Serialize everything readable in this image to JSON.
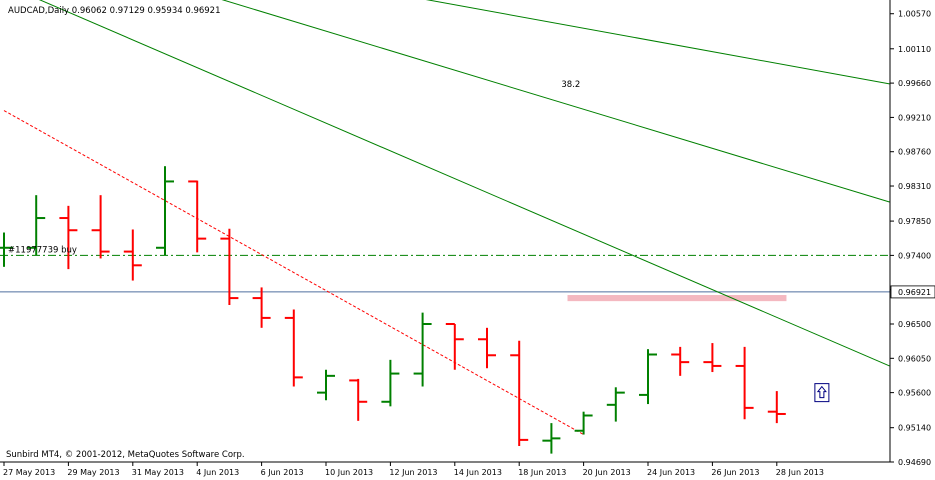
{
  "header": {
    "symbol_line": "AUDCAD,Daily  0.96062 0.97129 0.95934 0.96921"
  },
  "footer": {
    "copyright": "Sunbird MT4, © 2001-2012, MetaQuotes Software Corp."
  },
  "colors": {
    "up_bar": "#008000",
    "down_bar": "#ff0000",
    "trend_line": "#008000",
    "support_line": "#ff0000",
    "order_line": "#008000",
    "bid_line": "#4f6f9f",
    "zone": "#f4b8c0",
    "axis": "#000000"
  },
  "chart_data": {
    "type": "ohlc",
    "symbol": "AUDCAD",
    "timeframe": "Daily",
    "last": {
      "open": 0.96062,
      "high": 0.97129,
      "low": 0.95934,
      "close": 0.96921
    },
    "ylim": [
      0.9469,
      1.0075
    ],
    "y_ticks": [
      "1.00570",
      "1.00110",
      "0.99660",
      "0.99210",
      "0.98760",
      "0.98310",
      "0.97850",
      "0.97400",
      "0.96950",
      "0.96500",
      "0.96050",
      "0.95600",
      "0.95140",
      "0.94690"
    ],
    "x_ticks": [
      {
        "label": "27 May 2013",
        "bar": 0
      },
      {
        "label": "29 May 2013",
        "bar": 2
      },
      {
        "label": "31 May 2013",
        "bar": 4
      },
      {
        "label": "4 Jun 2013",
        "bar": 6
      },
      {
        "label": "6 Jun 2013",
        "bar": 8
      },
      {
        "label": "10 Jun 2013",
        "bar": 10
      },
      {
        "label": "12 Jun 2013",
        "bar": 12
      },
      {
        "label": "14 Jun 2013",
        "bar": 14
      },
      {
        "label": "18 Jun 2013",
        "bar": 16
      },
      {
        "label": "20 Jun 2013",
        "bar": 18
      },
      {
        "label": "24 Jun 2013",
        "bar": 20
      },
      {
        "label": "26 Jun 2013",
        "bar": 22
      },
      {
        "label": "28 Jun 2013",
        "bar": 24
      }
    ],
    "bars": [
      {
        "o": 0.975,
        "h": 0.977,
        "l": 0.9725,
        "c": 0.975
      },
      {
        "o": 0.975,
        "h": 0.9819,
        "l": 0.974,
        "c": 0.9789
      },
      {
        "o": 0.9789,
        "h": 0.9805,
        "l": 0.9722,
        "c": 0.9773
      },
      {
        "o": 0.9773,
        "h": 0.9819,
        "l": 0.9736,
        "c": 0.9745
      },
      {
        "o": 0.9745,
        "h": 0.9774,
        "l": 0.9707,
        "c": 0.9727
      },
      {
        "o": 0.975,
        "h": 0.9857,
        "l": 0.974,
        "c": 0.9837
      },
      {
        "o": 0.9837,
        "h": 0.9838,
        "l": 0.9744,
        "c": 0.9762
      },
      {
        "o": 0.9762,
        "h": 0.9775,
        "l": 0.9675,
        "c": 0.9684
      },
      {
        "o": 0.9684,
        "h": 0.9698,
        "l": 0.9645,
        "c": 0.9658
      },
      {
        "o": 0.9658,
        "h": 0.9669,
        "l": 0.9568,
        "c": 0.958
      },
      {
        "o": 0.956,
        "h": 0.959,
        "l": 0.955,
        "c": 0.9582
      },
      {
        "o": 0.9576,
        "h": 0.9578,
        "l": 0.9523,
        "c": 0.9548
      },
      {
        "o": 0.9548,
        "h": 0.9603,
        "l": 0.9542,
        "c": 0.9585
      },
      {
        "o": 0.9585,
        "h": 0.9665,
        "l": 0.9568,
        "c": 0.965
      },
      {
        "o": 0.965,
        "h": 0.965,
        "l": 0.959,
        "c": 0.963
      },
      {
        "o": 0.963,
        "h": 0.9645,
        "l": 0.9592,
        "c": 0.9609
      },
      {
        "o": 0.9609,
        "h": 0.9628,
        "l": 0.949,
        "c": 0.9498
      },
      {
        "o": 0.9497,
        "h": 0.952,
        "l": 0.948,
        "c": 0.95
      },
      {
        "o": 0.951,
        "h": 0.9535,
        "l": 0.9505,
        "c": 0.953
      },
      {
        "o": 0.9544,
        "h": 0.9567,
        "l": 0.9522,
        "c": 0.956
      },
      {
        "o": 0.9557,
        "h": 0.9617,
        "l": 0.9545,
        "c": 0.961
      },
      {
        "o": 0.961,
        "h": 0.962,
        "l": 0.9582,
        "c": 0.96
      },
      {
        "o": 0.96,
        "h": 0.9625,
        "l": 0.9587,
        "c": 0.9595
      },
      {
        "o": 0.9595,
        "h": 0.962,
        "l": 0.9525,
        "c": 0.954
      },
      {
        "o": 0.9535,
        "h": 0.9562,
        "l": 0.952,
        "c": 0.9532
      }
    ],
    "order_line": {
      "label": "#11977739 buy",
      "price": 0.974
    },
    "bid_line": {
      "price": 0.96921,
      "label": "0.96921"
    },
    "zone": {
      "from_bar": 17.5,
      "to_bar": 24.3,
      "price_high": 0.9688,
      "price_low": 0.968
    },
    "fib_label": {
      "text": "38.2",
      "bar": 17,
      "price": 0.9965
    },
    "trend_lines": [
      {
        "name": "upper-channel-line",
        "p1": {
          "bar": 8.5,
          "price": 1.0111
        },
        "p2": {
          "bar": 27.5,
          "price": 0.9965
        }
      },
      {
        "name": "middle-channel-line",
        "p1": {
          "bar": 4.0,
          "price": 1.0111
        },
        "p2": {
          "bar": 27.5,
          "price": 0.981
        }
      },
      {
        "name": "lower-channel-line",
        "p1": {
          "bar": 0.3,
          "price": 1.009
        },
        "p2": {
          "bar": 27.5,
          "price": 0.9595
        }
      }
    ],
    "support_line": {
      "p1": {
        "bar": 0,
        "price": 0.993
      },
      "p2": {
        "bar": 18.0,
        "price": 0.9505
      }
    },
    "arrow_marker": {
      "bar": 25.4,
      "price": 0.956
    }
  }
}
